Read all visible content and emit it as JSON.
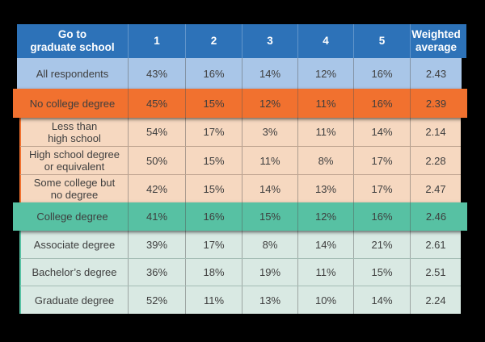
{
  "table": {
    "corner_label_lines": [
      "Go to",
      "graduate school"
    ],
    "column_headers": [
      "1",
      "2",
      "3",
      "4",
      "5"
    ],
    "avg_header_lines": [
      "Weighted",
      "average"
    ],
    "rows": [
      {
        "label_lines": [
          "All respondents"
        ],
        "style": "blue",
        "values": [
          "43%",
          "16%",
          "14%",
          "12%",
          "16%"
        ],
        "avg": "2.43"
      },
      {
        "label_lines": [
          "No college degree"
        ],
        "style": "pop-orange",
        "values": [
          "45%",
          "15%",
          "12%",
          "11%",
          "16%"
        ],
        "avg": "2.39"
      },
      {
        "label_lines": [
          "Less than",
          "high school"
        ],
        "style": "sub-orange",
        "values": [
          "54%",
          "17%",
          "3%",
          "11%",
          "14%"
        ],
        "avg": "2.14"
      },
      {
        "label_lines": [
          "High school degree",
          "or equivalent"
        ],
        "style": "sub-orange",
        "values": [
          "50%",
          "15%",
          "11%",
          "8%",
          "17%"
        ],
        "avg": "2.28"
      },
      {
        "label_lines": [
          "Some college but",
          "no degree"
        ],
        "style": "sub-orange",
        "values": [
          "42%",
          "15%",
          "14%",
          "13%",
          "17%"
        ],
        "avg": "2.47"
      },
      {
        "label_lines": [
          "College degree"
        ],
        "style": "pop-teal",
        "values": [
          "41%",
          "16%",
          "15%",
          "12%",
          "16%"
        ],
        "avg": "2.46"
      },
      {
        "label_lines": [
          "Associate degree"
        ],
        "style": "sub-teal",
        "values": [
          "39%",
          "17%",
          "8%",
          "14%",
          "21%"
        ],
        "avg": "2.61"
      },
      {
        "label_lines": [
          "Bachelor’s degree"
        ],
        "style": "sub-teal",
        "values": [
          "36%",
          "18%",
          "19%",
          "11%",
          "15%"
        ],
        "avg": "2.51"
      },
      {
        "label_lines": [
          "Graduate degree"
        ],
        "style": "sub-teal",
        "values": [
          "52%",
          "11%",
          "13%",
          "10%",
          "14%"
        ],
        "avg": "2.24"
      }
    ]
  },
  "colors": {
    "background": "#000000",
    "header_blue": "#2d72b8",
    "row_light_blue": "#a9c6e8",
    "row_orange": "#f1712f",
    "row_peach": "#f6d8c0",
    "row_teal": "#57c1a3",
    "row_light_green": "#d9e9e3",
    "text_dark": "#3e3e3e",
    "text_light": "#ffffff"
  },
  "chart_data": {
    "type": "table",
    "title": "Go to graduate school",
    "columns": [
      "1",
      "2",
      "3",
      "4",
      "5",
      "Weighted average"
    ],
    "rows": [
      {
        "label": "All respondents",
        "group": "all",
        "values_pct": [
          43,
          16,
          14,
          12,
          16
        ],
        "weighted_average": 2.43
      },
      {
        "label": "No college degree",
        "group": "no-college-degree",
        "values_pct": [
          45,
          15,
          12,
          11,
          16
        ],
        "weighted_average": 2.39
      },
      {
        "label": "Less than high school",
        "group": "no-college-degree",
        "values_pct": [
          54,
          17,
          3,
          11,
          14
        ],
        "weighted_average": 2.14
      },
      {
        "label": "High school degree or equivalent",
        "group": "no-college-degree",
        "values_pct": [
          50,
          15,
          11,
          8,
          17
        ],
        "weighted_average": 2.28
      },
      {
        "label": "Some college but no degree",
        "group": "no-college-degree",
        "values_pct": [
          42,
          15,
          14,
          13,
          17
        ],
        "weighted_average": 2.47
      },
      {
        "label": "College degree",
        "group": "college-degree",
        "values_pct": [
          41,
          16,
          15,
          12,
          16
        ],
        "weighted_average": 2.46
      },
      {
        "label": "Associate degree",
        "group": "college-degree",
        "values_pct": [
          39,
          17,
          8,
          14,
          21
        ],
        "weighted_average": 2.61
      },
      {
        "label": "Bachelor's degree",
        "group": "college-degree",
        "values_pct": [
          36,
          18,
          19,
          11,
          15
        ],
        "weighted_average": 2.51
      },
      {
        "label": "Graduate degree",
        "group": "college-degree",
        "values_pct": [
          52,
          11,
          13,
          10,
          14
        ],
        "weighted_average": 2.24
      }
    ]
  }
}
